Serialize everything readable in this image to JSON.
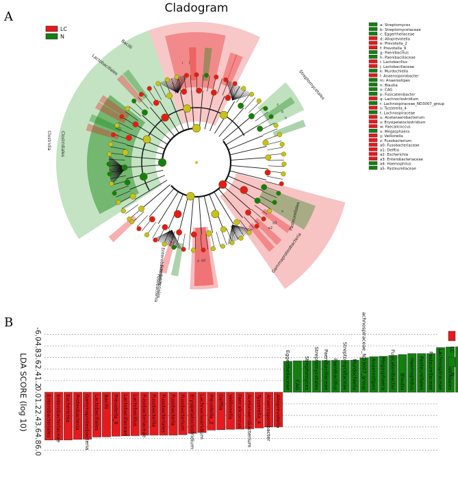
{
  "panel_labels": {
    "a": "A",
    "b": "B"
  },
  "colors": {
    "lc": "#e8191c",
    "n": "#11800f",
    "lc_light": "#f6b9b9",
    "n_light": "#b9deb7",
    "node": "#c8c21a",
    "node_edge": "#6a6a10"
  },
  "chart_data": [
    {
      "type": "cladogram",
      "title": "Cladogram",
      "legend": [
        {
          "label": "LC",
          "color": "#e8191c"
        },
        {
          "label": "N",
          "color": "#11800f"
        }
      ],
      "key": [
        {
          "code": "a",
          "taxon": "Streptomyces",
          "group": "N"
        },
        {
          "code": "b",
          "taxon": "Streptomycetaceae",
          "group": "N"
        },
        {
          "code": "c",
          "taxon": "Eggerthellaceae",
          "group": "N"
        },
        {
          "code": "d",
          "taxon": "Alloprevotella",
          "group": "LC"
        },
        {
          "code": "e",
          "taxon": "Prevotella_2",
          "group": "LC"
        },
        {
          "code": "f",
          "taxon": "Prevotella_9",
          "group": "LC"
        },
        {
          "code": "g",
          "taxon": "Paenibacillus",
          "group": "N"
        },
        {
          "code": "h",
          "taxon": "Paenibacillaceae",
          "group": "N"
        },
        {
          "code": "i",
          "taxon": "Lactobacillus",
          "group": "LC"
        },
        {
          "code": "j",
          "taxon": "Lactobacillaceae",
          "group": "LC"
        },
        {
          "code": "k",
          "taxon": "Murdochiella",
          "group": "N"
        },
        {
          "code": "l",
          "taxon": "Anaerosporobacter",
          "group": "LC"
        },
        {
          "code": "m",
          "taxon": "Anaerostipes",
          "group": "N"
        },
        {
          "code": "n",
          "taxon": "Blautia",
          "group": "N"
        },
        {
          "code": "o",
          "taxon": "CAG",
          "group": "N"
        },
        {
          "code": "p",
          "taxon": "Fusicatenibacter",
          "group": "N"
        },
        {
          "code": "q",
          "taxon": "Lachnoclostridium",
          "group": "LC"
        },
        {
          "code": "r",
          "taxon": "Lachnospiraceae_ND3007_group",
          "group": "N"
        },
        {
          "code": "s",
          "taxon": "Tyzzerella_4",
          "group": "LC"
        },
        {
          "code": "t",
          "taxon": "Lachnospiraceae",
          "group": "N"
        },
        {
          "code": "u",
          "taxon": "Acetanaerobacterium",
          "group": "LC"
        },
        {
          "code": "v",
          "taxon": "Erysipelatoclostridium",
          "group": "LC"
        },
        {
          "code": "w",
          "taxon": "Faecalicoccus",
          "group": "LC"
        },
        {
          "code": "x",
          "taxon": "Megasphaera",
          "group": "N"
        },
        {
          "code": "y",
          "taxon": "Veillonella",
          "group": "LC"
        },
        {
          "code": "z",
          "taxon": "Fusobacterium",
          "group": "LC"
        },
        {
          "code": "a0",
          "taxon": "Fusobacteriaceae",
          "group": "LC"
        },
        {
          "code": "a1",
          "taxon": "Delftia",
          "group": "LC"
        },
        {
          "code": "a2",
          "taxon": "Escherichia",
          "group": "LC"
        },
        {
          "code": "a3",
          "taxon": "Enterobacteriaceae",
          "group": "LC"
        },
        {
          "code": "a4",
          "taxon": "Haemophilus",
          "group": "N"
        },
        {
          "code": "a5",
          "taxon": "Pasteurellaceae",
          "group": "N"
        }
      ],
      "clade_labels": [
        {
          "text": "Bacilli",
          "group": "LC"
        },
        {
          "text": "Lactobacillales",
          "group": "LC"
        },
        {
          "text": "Clostridia",
          "group": "N"
        },
        {
          "text": "Clostridiales",
          "group": "N"
        },
        {
          "text": "Streptomycetales",
          "group": "N"
        },
        {
          "text": "Pasteurellales",
          "group": "N"
        },
        {
          "text": "Enterobacteriales",
          "group": "LC"
        },
        {
          "text": "Gammaproteobacteria",
          "group": "LC"
        },
        {
          "text": "Fusobacteriales",
          "group": "LC"
        },
        {
          "text": "Fusobacteriia",
          "group": "LC"
        }
      ]
    },
    {
      "type": "bar",
      "orientation": "vertical",
      "ylabel": "LDA SCORE (log 10)",
      "yticks": [
        "-6.0",
        "-4.8",
        "-3.6",
        "-2.4",
        "-1.2",
        "0.0",
        "1.2",
        "2.4",
        "3.6",
        "4.8",
        "6.0"
      ],
      "ylim": [
        -6.0,
        6.0
      ],
      "legend": [
        {
          "label": "LC",
          "color": "#e8191c"
        },
        {
          "label": "N",
          "color": "#11800f"
        }
      ],
      "series": [
        {
          "name": "LC",
          "color": "#e8191c",
          "categories": [
            "Enterobacteriales",
            "Enterobacteriaceae",
            "Escherichia",
            "Proteobacteria",
            "Gammaproteobacteria",
            "Lactobacillales",
            "Bacilli",
            "Prevotella_9",
            "Lactobacillaceae",
            "Lactobacillus",
            "Fusobacteriaceae",
            "Fusobacteriia",
            "Fusobacteriales",
            "Fusobacteria",
            "Fusobacterium",
            "Erysipelatoclostridium",
            "Lachnoclostridium",
            "Prevotella_2",
            "Delftia",
            "Veillonella",
            "Faecalicoccus",
            "Acetanaerobacterium",
            "Tyzzerella_4",
            "Anaerosporobacter",
            "Alloprevotella"
          ],
          "values": [
            4.95,
            4.94,
            4.94,
            4.88,
            4.86,
            4.64,
            4.62,
            4.55,
            4.52,
            4.5,
            4.44,
            4.44,
            4.44,
            4.44,
            4.4,
            4.26,
            4.16,
            3.92,
            3.88,
            3.84,
            3.82,
            3.78,
            3.7,
            3.6,
            3.58
          ]
        },
        {
          "name": "N",
          "color": "#11800f",
          "categories": [
            "Eggerthellaceae",
            "CAG",
            "Streptomyces",
            "Streptomycetales",
            "Paenibacillaceae",
            "Paenibacillus",
            "Streptomycetaceae",
            "Murdochiella",
            "Lachnospiraceae_ND3007_group",
            "Anaerostipes",
            "Megasphaera",
            "Fusicatenibacter",
            "Blautia",
            "Haemophilus",
            "Pasteurellales",
            "Pasteurellaceae",
            "Lachnospiraceae",
            "Clostridiales",
            "Clostridia"
          ],
          "values": [
            -3.2,
            -3.25,
            -3.26,
            -3.26,
            -3.28,
            -3.3,
            -3.3,
            -3.32,
            -3.56,
            -3.68,
            -3.72,
            -3.8,
            -3.9,
            -4.0,
            -4.0,
            -4.0,
            -4.62,
            -4.68,
            -4.7
          ]
        }
      ]
    }
  ]
}
